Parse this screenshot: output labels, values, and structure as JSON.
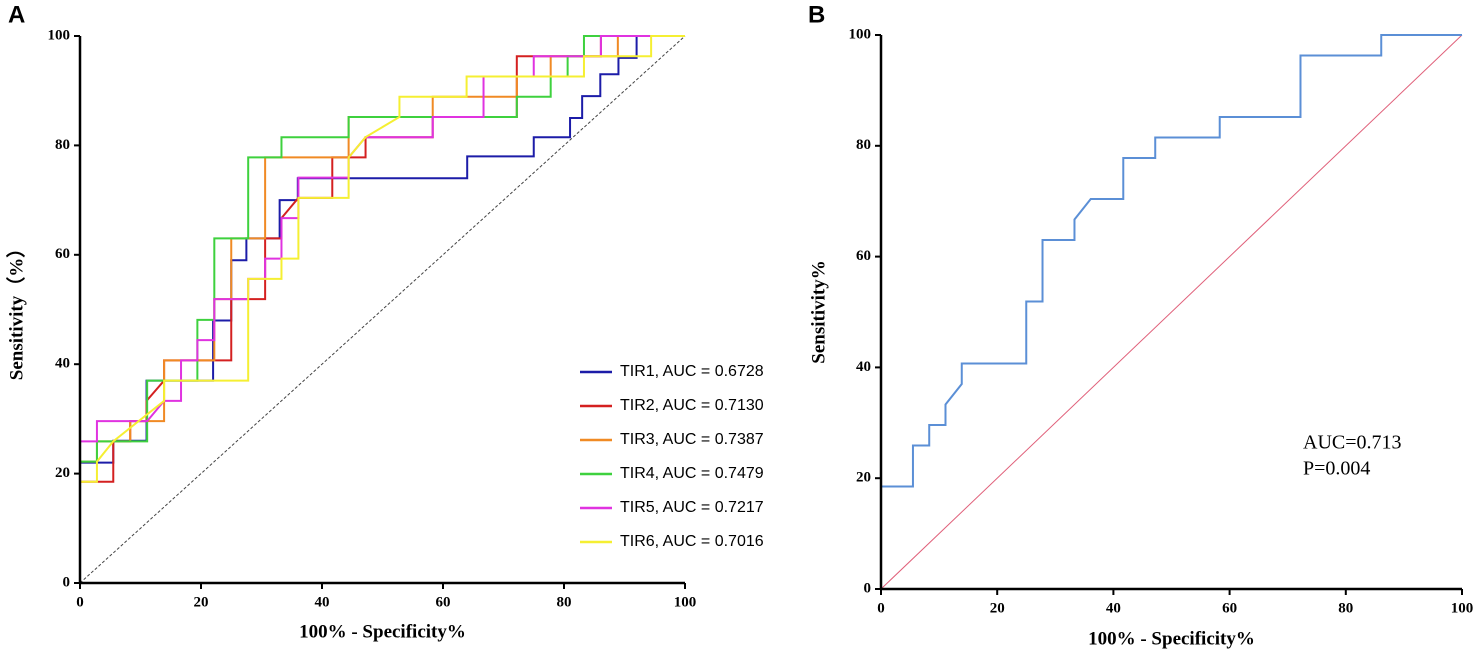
{
  "chart_data": [
    {
      "type": "line",
      "panel_label": "A",
      "xlabel": "100% - Specificity%",
      "ylabel": "Sensitivity（%）",
      "xlim": [
        0,
        100
      ],
      "ylim": [
        0,
        100
      ],
      "xticks": [
        0,
        20,
        40,
        60,
        80,
        100
      ],
      "yticks": [
        0,
        20,
        40,
        60,
        80,
        100
      ],
      "legend": "lower right",
      "diagonal": {
        "color": "#444444",
        "dashed": true
      },
      "series": [
        {
          "name": "TIR1, AUC = 0.6728",
          "color": "#1c1ca8",
          "x": [
            0,
            0,
            5.5,
            5.5,
            11,
            11,
            22,
            22,
            25,
            25,
            27.5,
            27.5,
            33,
            33,
            36,
            36,
            64,
            64,
            75,
            75,
            81,
            81,
            83,
            83,
            86,
            86,
            89,
            89,
            92,
            92,
            100
          ],
          "values": [
            0,
            22,
            22,
            26,
            26,
            37,
            37,
            48,
            48,
            59,
            59,
            63,
            63,
            70,
            70,
            74,
            74,
            78,
            78,
            81.5,
            81.5,
            85,
            85,
            89,
            89,
            93,
            93,
            96,
            96,
            100,
            100
          ]
        },
        {
          "name": "TIR2, AUC = 0.7130",
          "color": "#d42020",
          "x": [
            0,
            0,
            5.5,
            5.5,
            8.3,
            8.3,
            11,
            11,
            13.9,
            13.9,
            25,
            25,
            30.6,
            30.6,
            33.3,
            33.3,
            36.1,
            36.1,
            41.7,
            41.7,
            47.2,
            47.2,
            58.3,
            58.3,
            72.2,
            72.2,
            86.1,
            86.1,
            100
          ],
          "values": [
            0,
            18.5,
            18.5,
            25.9,
            25.9,
            29.6,
            29.6,
            33.3,
            37,
            40.7,
            40.7,
            51.9,
            51.9,
            63,
            63,
            66.7,
            70.4,
            70.4,
            70.4,
            77.8,
            77.8,
            81.5,
            81.5,
            85.2,
            85.2,
            96.3,
            96.3,
            100,
            100
          ]
        },
        {
          "name": "TIR3, AUC = 0.7387",
          "color": "#f08a24",
          "x": [
            0,
            0,
            2.8,
            2.8,
            8.3,
            8.3,
            13.9,
            13.9,
            22.2,
            22.2,
            25,
            25,
            30.6,
            30.6,
            44.4,
            44.4,
            58.3,
            58.3,
            72.2,
            72.2,
            77.8,
            77.8,
            88.9,
            88.9,
            100
          ],
          "values": [
            0,
            22.2,
            22.2,
            25.9,
            25.9,
            29.6,
            29.6,
            40.7,
            40.7,
            51.9,
            51.9,
            63,
            63,
            77.8,
            77.8,
            85.2,
            85.2,
            88.9,
            88.9,
            92.6,
            92.6,
            96.3,
            96.3,
            100,
            100
          ]
        },
        {
          "name": "TIR4, AUC = 0.7479",
          "color": "#3ed13e",
          "x": [
            0,
            0,
            2.8,
            2.8,
            11.1,
            11.1,
            19.4,
            19.4,
            22.2,
            22.2,
            27.8,
            27.8,
            33.3,
            33.3,
            44.4,
            44.4,
            72.2,
            72.2,
            77.8,
            77.8,
            80.6,
            80.6,
            83.3,
            83.3,
            100
          ],
          "values": [
            0,
            22.2,
            22.2,
            25.9,
            25.9,
            37,
            37,
            48.1,
            48.1,
            63,
            63,
            77.8,
            77.8,
            81.5,
            81.5,
            85.2,
            85.2,
            88.9,
            88.9,
            92.6,
            92.6,
            96.3,
            96.3,
            100,
            100
          ]
        },
        {
          "name": "TIR5, AUC = 0.7217",
          "color": "#e033e0",
          "x": [
            0,
            0,
            2.8,
            2.8,
            11.1,
            13.9,
            16.7,
            16.7,
            19.4,
            19.4,
            22.2,
            22.2,
            27.8,
            27.8,
            30.6,
            30.6,
            33.3,
            33.3,
            36.1,
            36.1,
            44.4,
            44.4,
            47.2,
            58.3,
            58.3,
            66.7,
            66.7,
            75,
            75,
            86.1,
            86.1,
            100
          ],
          "values": [
            0,
            25.9,
            25.9,
            29.6,
            29.6,
            33.3,
            33.3,
            40.7,
            40.7,
            44.4,
            44.4,
            51.9,
            51.9,
            55.6,
            55.6,
            59.3,
            59.3,
            66.7,
            66.7,
            74.1,
            74.1,
            77.8,
            81.5,
            81.5,
            85.2,
            85.2,
            92.6,
            92.6,
            96.3,
            96.3,
            100,
            100
          ]
        },
        {
          "name": "TIR6, AUC = 0.7016",
          "color": "#f5ef32",
          "x": [
            0,
            0,
            2.8,
            2.8,
            5.5,
            13.9,
            13.9,
            27.8,
            27.8,
            33.3,
            33.3,
            36.1,
            36.1,
            44.4,
            44.4,
            47.2,
            52.8,
            52.8,
            63.9,
            63.9,
            83.3,
            83.3,
            94.4,
            94.4,
            100
          ],
          "values": [
            0,
            18.5,
            18.5,
            22.2,
            25.9,
            33.3,
            37,
            37,
            55.6,
            55.6,
            59.3,
            59.3,
            70.4,
            70.4,
            77.8,
            81.5,
            85.2,
            88.9,
            88.9,
            92.6,
            92.6,
            96.3,
            96.3,
            100,
            100
          ]
        }
      ]
    },
    {
      "type": "line",
      "panel_label": "B",
      "xlabel": "100% - Specificity%",
      "ylabel": "Sensitivity%",
      "xlim": [
        0,
        100
      ],
      "ylim": [
        0,
        100
      ],
      "xticks": [
        0,
        20,
        40,
        60,
        80,
        100
      ],
      "yticks": [
        0,
        20,
        40,
        60,
        80,
        100
      ],
      "diagonal": {
        "color": "#e0607a",
        "dashed": false
      },
      "annotations": [
        "AUC=0.713",
        "P=0.004"
      ],
      "series": [
        {
          "color": "#5b8fd6",
          "x": [
            0,
            0,
            5.5,
            5.5,
            8.3,
            8.3,
            11.1,
            11.1,
            13.9,
            13.9,
            25,
            25,
            27.8,
            27.8,
            33.3,
            33.3,
            36.1,
            41.7,
            41.7,
            47.2,
            47.2,
            58.3,
            58.3,
            72.2,
            72.2,
            86.1,
            86.1,
            100
          ],
          "values": [
            0,
            18.5,
            18.5,
            25.9,
            25.9,
            29.6,
            29.6,
            33.3,
            37,
            40.7,
            40.7,
            51.9,
            51.9,
            63,
            63,
            66.7,
            70.4,
            70.4,
            77.8,
            77.8,
            81.5,
            81.5,
            85.2,
            85.2,
            96.3,
            96.3,
            100,
            100
          ]
        }
      ]
    }
  ]
}
